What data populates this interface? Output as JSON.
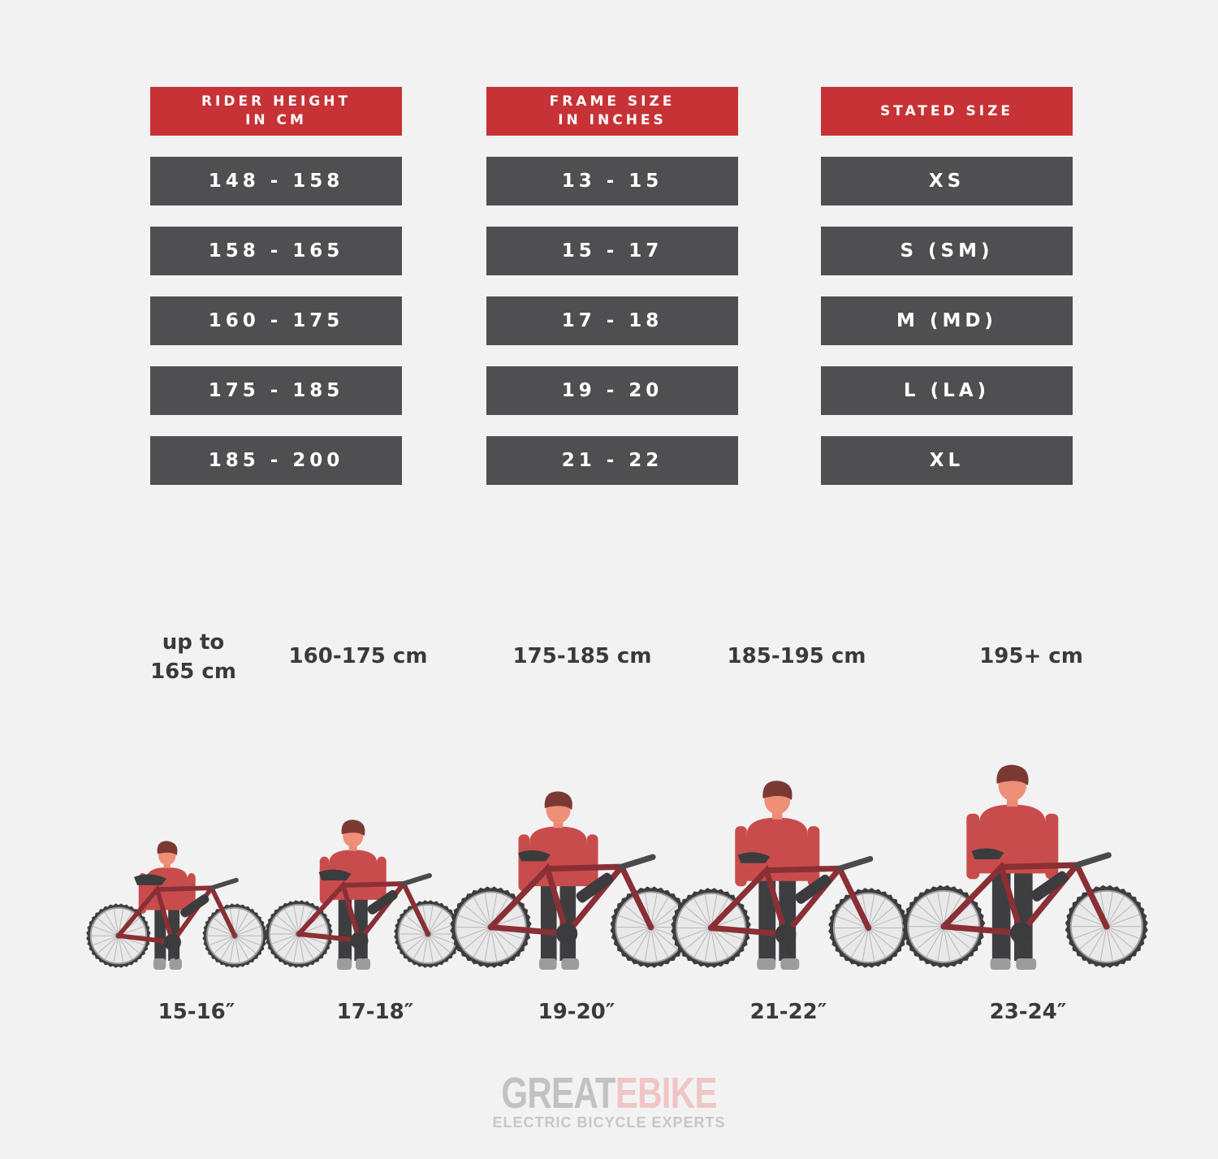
{
  "table": {
    "headers": [
      "RIDER HEIGHT\nIN CM",
      "FRAME SIZE\nIN INCHES",
      "STATED SIZE"
    ],
    "rider_height_cm": [
      "148 - 158",
      "158 - 165",
      "160 - 175",
      "175 - 185",
      "185 - 200"
    ],
    "frame_size_in": [
      "13 - 15",
      "15 - 17",
      "17 - 18",
      "19 - 20",
      "21 - 22"
    ],
    "stated_size": [
      "XS",
      "S (SM)",
      "M (MD)",
      "L (LA)",
      "XL"
    ]
  },
  "riders": [
    {
      "height": "up to\n165 cm",
      "frame": "15-16″"
    },
    {
      "height": "160-175 cm",
      "frame": "17-18″"
    },
    {
      "height": "175-185 cm",
      "frame": "19-20″"
    },
    {
      "height": "185-195 cm",
      "frame": "21-22″"
    },
    {
      "height": "195+ cm",
      "frame": "23-24″"
    }
  ],
  "logo": {
    "part1": "GREAT",
    "part2": "EBIKE",
    "tagline": "ELECTRIC BICYCLE EXPERTS"
  },
  "colors": {
    "header": "#c73236",
    "cell": "#4f4f51",
    "shirt": "#c94c4c",
    "hair": "#7a3a33",
    "frame": "#8a2f35",
    "pants": "#3e3e40",
    "background": "#f2f2f2"
  }
}
